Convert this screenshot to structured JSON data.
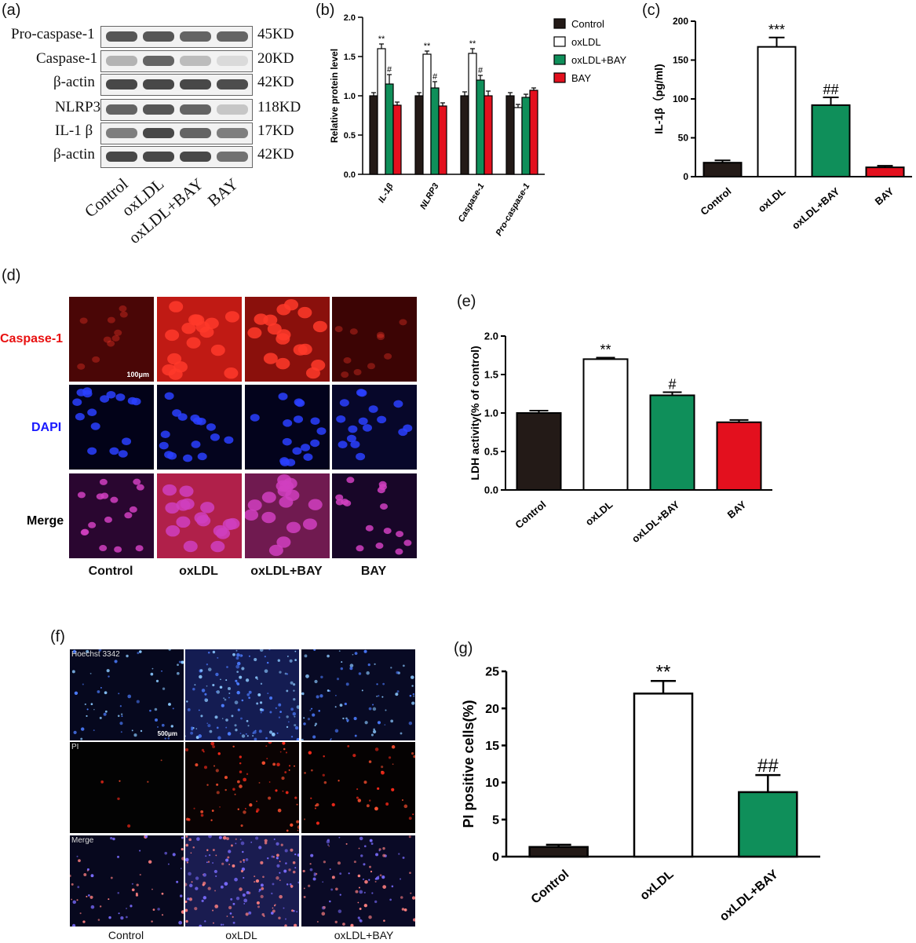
{
  "panels": {
    "a": "(a)",
    "b": "(b)",
    "c": "(c)",
    "d": "(d)",
    "e": "(e)",
    "f": "(f)",
    "g": "(g)"
  },
  "colors": {
    "control": "#231a17",
    "oxldl": "#ffffff",
    "oxldl_bay": "#0f8f5a",
    "bay": "#e3101e"
  },
  "blot": {
    "rows": [
      {
        "label": "Pro-caspase-1",
        "size": "45KD"
      },
      {
        "label": "Caspase-1",
        "size": "20KD"
      },
      {
        "label": "β-actin",
        "size": "42KD"
      },
      {
        "label": "NLRP3",
        "size": "118KD"
      },
      {
        "label": "IL-1 β",
        "size": "17KD"
      },
      {
        "label": "β-actin",
        "size": "42KD"
      }
    ],
    "intensity": [
      [
        0.85,
        0.85,
        0.8,
        0.8
      ],
      [
        0.45,
        0.8,
        0.4,
        0.2
      ],
      [
        0.9,
        0.9,
        0.9,
        0.88
      ],
      [
        0.8,
        0.85,
        0.8,
        0.35
      ],
      [
        0.7,
        0.9,
        0.8,
        0.7
      ],
      [
        0.9,
        0.9,
        0.9,
        0.75
      ]
    ],
    "lanes": [
      "Control",
      "oxLDL",
      "oxLDL+BAY",
      "BAY"
    ]
  },
  "micrographs_d": {
    "rows": [
      {
        "label": "Caspase-1",
        "color": "#e81010"
      },
      {
        "label": "DAPI",
        "color": "#1a1aff"
      },
      {
        "label": "Merge",
        "color": "#000000"
      }
    ],
    "cols": [
      "Control",
      "oxLDL",
      "oxLDL+BAY",
      "BAY"
    ],
    "scale": "100μm"
  },
  "micrographs_f": {
    "rows": [
      "Hoechst 3342",
      "PI",
      "Merge"
    ],
    "cols": [
      "Control",
      "oxLDL",
      "oxLDL+BAY"
    ],
    "scale": "500μm"
  },
  "chart_data": [
    {
      "id": "b",
      "type": "bar",
      "ylabel": "Relative protein level",
      "ylim": [
        0,
        2.0
      ],
      "yticks": [
        "0.0",
        "0.5",
        "1.0",
        "1.5",
        "2.0"
      ],
      "categories": [
        "IL-1β",
        "NLRP3",
        "Caspase-1",
        "Pro-caspase-1"
      ],
      "series": [
        {
          "name": "Control",
          "values": [
            1.0,
            1.0,
            1.0,
            1.0
          ],
          "err": [
            0.04,
            0.04,
            0.05,
            0.04
          ]
        },
        {
          "name": "oxLDL",
          "values": [
            1.6,
            1.53,
            1.54,
            0.85
          ],
          "err": [
            0.06,
            0.04,
            0.06,
            0.04
          ]
        },
        {
          "name": "oxLDL+BAY",
          "values": [
            1.15,
            1.1,
            1.2,
            0.98
          ],
          "err": [
            0.12,
            0.08,
            0.06,
            0.04
          ]
        },
        {
          "name": "BAY",
          "values": [
            0.88,
            0.87,
            1.0,
            1.07
          ],
          "err": [
            0.04,
            0.04,
            0.06,
            0.03
          ]
        }
      ],
      "annotations": [
        {
          "cat": 0,
          "series": 1,
          "text": "**"
        },
        {
          "cat": 0,
          "series": 2,
          "text": "#"
        },
        {
          "cat": 1,
          "series": 1,
          "text": "**"
        },
        {
          "cat": 1,
          "series": 2,
          "text": "#"
        },
        {
          "cat": 2,
          "series": 1,
          "text": "**"
        },
        {
          "cat": 2,
          "series": 2,
          "text": "#"
        }
      ],
      "legend": "top-right"
    },
    {
      "id": "c",
      "type": "bar",
      "ylabel": "IL-1β（pg/ml)",
      "ylim": [
        0,
        200
      ],
      "yticks": [
        "0",
        "50",
        "100",
        "150",
        "200"
      ],
      "categories": [
        "Control",
        "oxLDL",
        "oxLDL+BAY",
        "BAY"
      ],
      "values": [
        18,
        167,
        92,
        12
      ],
      "err": [
        3,
        12,
        10,
        2
      ],
      "annotations": [
        "",
        "***",
        "##",
        ""
      ]
    },
    {
      "id": "e",
      "type": "bar",
      "ylabel": "LDH activity(% of control)",
      "ylim": [
        0,
        2.0
      ],
      "yticks": [
        "0.0",
        "0.5",
        "1.0",
        "1.5",
        "2.0"
      ],
      "categories": [
        "Control",
        "oxLDL",
        "oxLDL+BAY",
        "BAY"
      ],
      "values": [
        1.0,
        1.7,
        1.23,
        0.88
      ],
      "err": [
        0.03,
        0.02,
        0.04,
        0.03
      ],
      "annotations": [
        "",
        "**",
        "#",
        ""
      ]
    },
    {
      "id": "g",
      "type": "bar",
      "ylabel": "PI positive cells(%)",
      "ylim": [
        0,
        25
      ],
      "yticks": [
        "0",
        "5",
        "10",
        "15",
        "20",
        "25"
      ],
      "categories": [
        "Control",
        "oxLDL",
        "oxLDL+BAY"
      ],
      "values": [
        1.3,
        22.0,
        8.7
      ],
      "err": [
        0.3,
        1.7,
        2.3
      ],
      "annotations": [
        "",
        "**",
        "##"
      ]
    }
  ]
}
